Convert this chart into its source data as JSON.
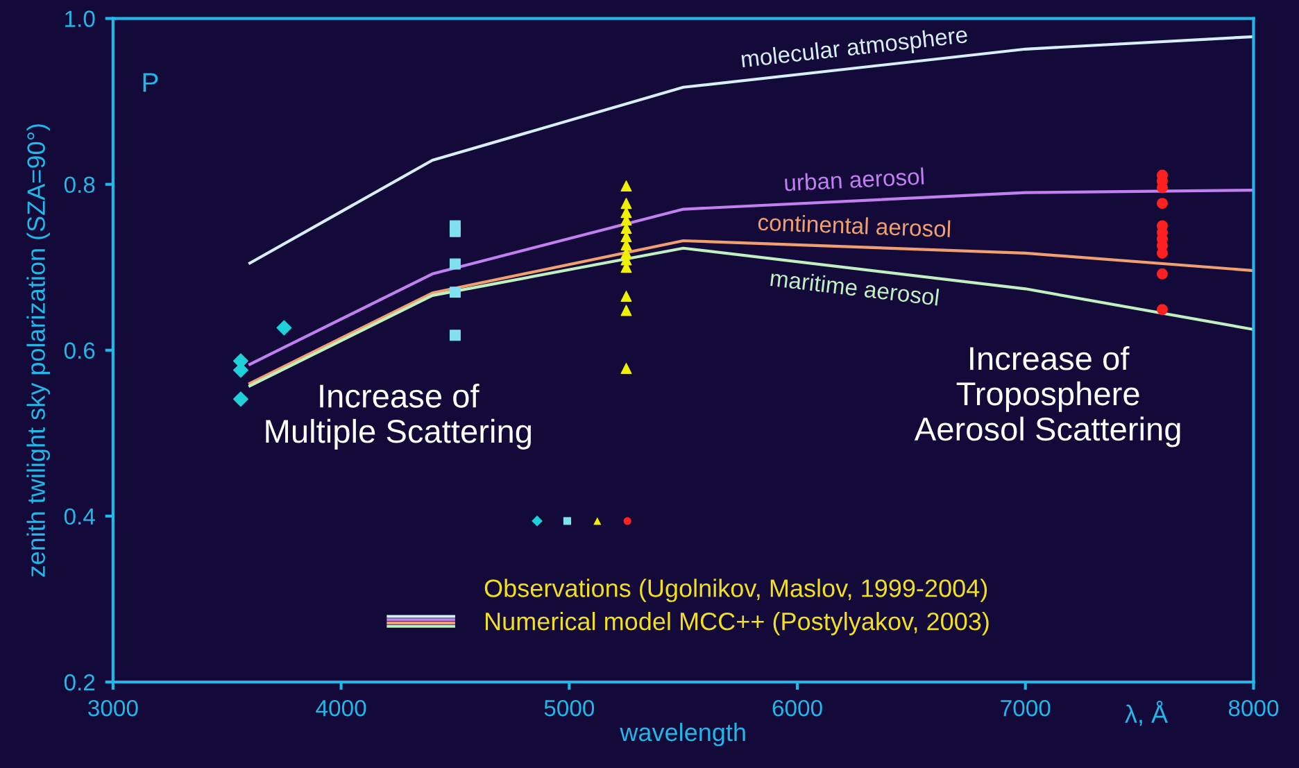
{
  "chart_data": {
    "type": "line",
    "xlabel": "wavelength",
    "ylabel": "zenith twilight sky polarization (SZA=90°)",
    "xlim": [
      3000,
      8000
    ],
    "ylim": [
      0.2,
      1.0
    ],
    "xticks": [
      3000,
      4000,
      5000,
      6000,
      7000,
      8000
    ],
    "yticks": [
      0.2,
      0.4,
      0.6,
      0.8,
      {
        "value": 1.0,
        "label": "1.0"
      }
    ],
    "grid": false,
    "line_style": "solid",
    "marker": "none",
    "series": [
      {
        "name": "molecular atmosphere",
        "color": "#d8eef8",
        "x": [
          3600,
          4400,
          5500,
          7000,
          8000
        ],
        "values": [
          0.705,
          0.829,
          0.917,
          0.963,
          0.978
        ]
      },
      {
        "name": "urban aerosol",
        "color": "#c080f0",
        "x": [
          3600,
          4400,
          5500,
          7000,
          8000
        ],
        "values": [
          0.583,
          0.692,
          0.77,
          0.79,
          0.793
        ]
      },
      {
        "name": "continental aerosol",
        "color": "#f0a070",
        "x": [
          3600,
          4400,
          5500,
          7000,
          8000
        ],
        "values": [
          0.56,
          0.669,
          0.732,
          0.717,
          0.696
        ]
      },
      {
        "name": "maritime aerosol",
        "color": "#c0f0c0",
        "x": [
          3600,
          4400,
          5500,
          7000,
          8000
        ],
        "values": [
          0.557,
          0.666,
          0.723,
          0.674,
          0.625
        ]
      },
      {
        "type": "scatter",
        "marker": "diamond",
        "color": "#20d0d8",
        "x": [
          3560,
          3560,
          3560,
          3750
        ],
        "values": [
          0.587,
          0.576,
          0.541,
          0.627
        ]
      },
      {
        "type": "scatter",
        "marker": "square",
        "color": "#80e0f0",
        "x": [
          4500,
          4500,
          4500,
          4500,
          4500
        ],
        "values": [
          0.75,
          0.743,
          0.704,
          0.67,
          0.618
        ]
      },
      {
        "type": "scatter",
        "marker": "triangle",
        "color": "#f0f000",
        "x": [
          5250,
          5250,
          5250,
          5250,
          5250,
          5250,
          5250,
          5250,
          5250,
          5250,
          5250,
          5250,
          5250
        ],
        "values": [
          0.798,
          0.777,
          0.766,
          0.757,
          0.747,
          0.737,
          0.727,
          0.717,
          0.709,
          0.7,
          0.665,
          0.648,
          0.578
        ]
      },
      {
        "type": "scatter",
        "marker": "circle",
        "color": "#ff2020",
        "x": [
          7600,
          7600,
          7600,
          7600,
          7600,
          7600,
          7600,
          7600,
          7600,
          7600,
          7600
        ],
        "values": [
          0.811,
          0.804,
          0.796,
          0.777,
          0.75,
          0.742,
          0.734,
          0.726,
          0.717,
          0.692,
          0.649
        ]
      }
    ],
    "annotations": [
      "Increase of\nMultiple Scattering",
      "Increase of\nTroposphere\nAerosol Scattering",
      "Observations (Ugolnikov, Maslov, 1999-2004)",
      "Numerical model MCC++ (Postylyakov, 2003)",
      "P",
      "λ, Å"
    ]
  }
}
